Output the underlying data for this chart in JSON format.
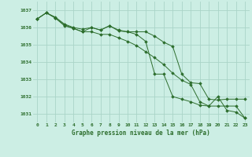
{
  "title": "Graphe pression niveau de la mer (hPa)",
  "background_color": "#cceee4",
  "grid_color": "#aad4c8",
  "line_color": "#2d6e2d",
  "x_labels": [
    "0",
    "1",
    "2",
    "3",
    "4",
    "5",
    "6",
    "7",
    "8",
    "9",
    "10",
    "11",
    "12",
    "13",
    "14",
    "15",
    "16",
    "17",
    "18",
    "19",
    "20",
    "21",
    "22",
    "23"
  ],
  "ylim": [
    1030.5,
    1037.5
  ],
  "yticks": [
    1031,
    1032,
    1033,
    1034,
    1035,
    1036,
    1037
  ],
  "series1": [
    1036.5,
    1036.85,
    1036.6,
    1036.2,
    1036.0,
    1035.9,
    1036.0,
    1035.85,
    1036.1,
    1035.8,
    1035.75,
    1035.75,
    1035.75,
    1035.5,
    1035.15,
    1034.9,
    1033.3,
    1032.8,
    1032.75,
    1031.85,
    1031.8,
    1031.85,
    1031.85,
    1031.85
  ],
  "series2": [
    1036.5,
    1036.85,
    1036.55,
    1036.15,
    1035.95,
    1035.75,
    1035.75,
    1035.6,
    1035.6,
    1035.4,
    1035.2,
    1034.95,
    1034.6,
    1034.25,
    1033.85,
    1033.35,
    1032.95,
    1032.7,
    1031.7,
    1031.45,
    1031.45,
    1031.45,
    1031.45,
    1030.75
  ],
  "series3": [
    1036.5,
    1036.85,
    1036.55,
    1036.1,
    1035.95,
    1035.75,
    1036.0,
    1035.85,
    1036.1,
    1035.85,
    1035.75,
    1035.6,
    1035.2,
    1033.3,
    1033.3,
    1032.0,
    1031.85,
    1031.7,
    1031.5,
    1031.45,
    1032.0,
    1031.2,
    1031.1,
    1030.75
  ]
}
